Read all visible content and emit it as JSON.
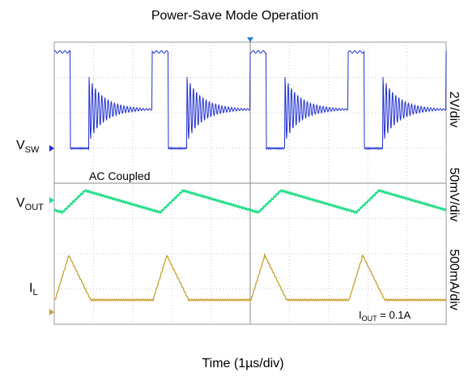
{
  "chart_data": {
    "type": "oscilloscope",
    "title": "Power-Save Mode Operation",
    "x_label": "Time (1µs/div)",
    "scale_labels": [
      "2V/div",
      "50mV/div",
      "500mA/div"
    ],
    "channels": [
      {
        "main": "V",
        "sub": "SW",
        "color": "#1f2fd0"
      },
      {
        "main": "V",
        "sub": "OUT",
        "color": "#22dd88"
      },
      {
        "main": "I",
        "sub": "L",
        "color": "#c8a030"
      }
    ],
    "annotations": {
      "coupling": "AC Coupled",
      "load": {
        "main": "I",
        "sub": "OUT",
        "rest": " = 0.1A"
      }
    }
  }
}
